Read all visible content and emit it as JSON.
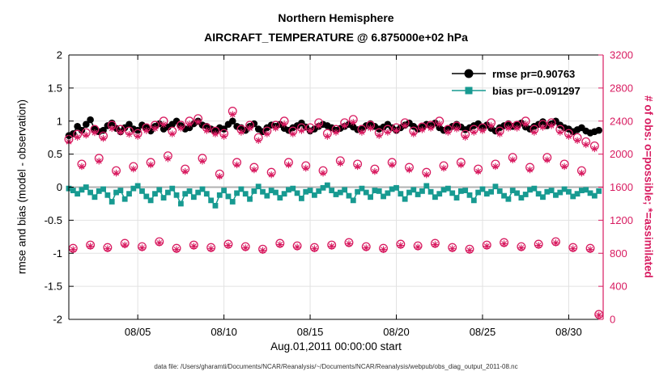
{
  "chart_data": {
    "type": "line",
    "title": "Northern Hemisphere",
    "subtitle": "AIRCRAFT_TEMPERATURE @ 6.875000e+02 hPa",
    "xlabel": "Aug.01,2011 00:00:00 start",
    "ylabel_left": "rmse and bias (model - observation)",
    "ylabel_right": "# of obs: o=possible; *=assimilated",
    "caption": "data file: /Users/gharamti/Documents/NCAR/Reanalysis/~/Documents/NCAR/Reanalysis/webpub/obs_diag_output_2011-08.nc",
    "xlim": [
      1,
      32
    ],
    "ylim_left": [
      -2,
      2
    ],
    "ylim_right": [
      0,
      3200
    ],
    "yticks_left": [
      -2,
      -1.5,
      -1,
      -0.5,
      0,
      0.5,
      1,
      1.5,
      2
    ],
    "yticks_right": [
      0,
      400,
      800,
      1200,
      1600,
      2000,
      2400,
      2800,
      3200
    ],
    "xticks": [
      {
        "v": 5,
        "label": "08/05"
      },
      {
        "v": 10,
        "label": "08/10"
      },
      {
        "v": 15,
        "label": "08/15"
      },
      {
        "v": 20,
        "label": "08/20"
      },
      {
        "v": 25,
        "label": "08/25"
      },
      {
        "v": 30,
        "label": "08/30"
      }
    ],
    "colors": {
      "rmse": "#000000",
      "bias": "#179a91",
      "obs": "#d81b60",
      "grid": "#e2e2e2",
      "zero": "#b0b0b0"
    },
    "x": {
      "start": 1,
      "step": 0.25,
      "count": 124,
      "unit": "day of Aug 2011"
    },
    "legend": [
      {
        "label": "rmse pr=0.90763",
        "color": "#000000",
        "marker": "circle"
      },
      {
        "label": "bias pr=-0.091297",
        "color": "#179a91",
        "marker": "square"
      }
    ],
    "series": [
      {
        "name": "bias",
        "axis": "left",
        "marker": "square",
        "line": true,
        "color": "#179a91",
        "values": [
          -0.02,
          -0.05,
          -0.1,
          -0.04,
          0.0,
          -0.08,
          -0.15,
          -0.06,
          -0.03,
          -0.12,
          -0.22,
          -0.08,
          -0.05,
          -0.18,
          -0.1,
          -0.02,
          0.02,
          -0.06,
          -0.14,
          -0.2,
          -0.1,
          -0.04,
          -0.16,
          -0.08,
          -0.02,
          -0.12,
          -0.25,
          -0.1,
          -0.06,
          -0.15,
          -0.08,
          -0.03,
          -0.1,
          -0.2,
          -0.28,
          -0.12,
          -0.05,
          -0.14,
          -0.22,
          -0.09,
          -0.03,
          -0.1,
          -0.18,
          -0.06,
          0.01,
          -0.07,
          -0.13,
          -0.05,
          -0.08,
          -0.16,
          -0.1,
          -0.04,
          -0.02,
          -0.09,
          -0.17,
          -0.07,
          -0.05,
          -0.12,
          -0.06,
          -0.01,
          0.03,
          -0.05,
          -0.11,
          -0.08,
          -0.04,
          -0.13,
          -0.2,
          -0.07,
          -0.02,
          -0.08,
          -0.15,
          -0.05,
          -0.06,
          -0.14,
          -0.09,
          -0.03,
          -0.01,
          -0.1,
          -0.18,
          -0.08,
          -0.04,
          -0.11,
          -0.06,
          0.02,
          -0.07,
          -0.15,
          -0.1,
          -0.04,
          -0.02,
          -0.09,
          -0.16,
          -0.06,
          -0.05,
          -0.12,
          -0.2,
          -0.08,
          -0.03,
          -0.1,
          -0.07,
          0.01,
          -0.06,
          -0.13,
          -0.18,
          -0.05,
          -0.09,
          -0.16,
          -0.11,
          -0.04,
          -0.02,
          -0.1,
          -0.15,
          -0.07,
          -0.05,
          -0.12,
          -0.08,
          -0.03,
          -0.07,
          -0.14,
          -0.1,
          -0.05,
          -0.04,
          -0.09,
          -0.13,
          -0.06
        ]
      },
      {
        "name": "rmse",
        "axis": "left",
        "marker": "circle",
        "line": true,
        "color": "#000000",
        "values": [
          0.78,
          0.81,
          0.92,
          0.86,
          0.95,
          1.02,
          0.88,
          0.84,
          0.86,
          0.93,
          0.97,
          0.89,
          0.84,
          0.9,
          0.95,
          0.88,
          0.86,
          0.94,
          0.9,
          0.85,
          0.92,
          0.96,
          0.88,
          0.91,
          0.95,
          1.0,
          0.93,
          0.88,
          0.9,
          0.96,
          1.0,
          0.94,
          0.92,
          0.88,
          0.85,
          0.9,
          0.88,
          0.95,
          1.0,
          0.92,
          0.9,
          0.86,
          0.92,
          0.96,
          0.88,
          0.84,
          0.9,
          0.94,
          0.92,
          0.95,
          0.89,
          0.86,
          0.9,
          0.93,
          0.97,
          0.91,
          0.85,
          0.88,
          0.92,
          0.95,
          0.93,
          0.9,
          0.86,
          0.89,
          0.92,
          0.95,
          0.91,
          0.87,
          0.89,
          0.93,
          0.96,
          0.92,
          0.88,
          0.91,
          0.95,
          0.9,
          0.86,
          0.9,
          0.94,
          0.97,
          0.92,
          0.88,
          0.91,
          0.95,
          0.93,
          0.97,
          0.9,
          0.86,
          0.89,
          0.92,
          0.95,
          0.91,
          0.87,
          0.9,
          0.93,
          0.96,
          0.91,
          0.94,
          0.89,
          0.85,
          0.9,
          0.93,
          0.96,
          0.92,
          0.94,
          0.97,
          0.91,
          0.88,
          0.92,
          0.95,
          0.99,
          0.93,
          0.96,
          1.0,
          0.94,
          0.9,
          0.88,
          0.84,
          0.87,
          0.9,
          0.85,
          0.82,
          0.84,
          0.86
        ]
      },
      {
        "name": "obs possible",
        "axis": "right",
        "marker": "ring",
        "line": false,
        "color": "#d81b60",
        "values": [
          2180,
          860,
          2240,
          1880,
          2260,
          900,
          2300,
          1950,
          2220,
          870,
          2350,
          1800,
          2300,
          920,
          2280,
          1850,
          2250,
          880,
          2320,
          1900,
          2350,
          940,
          2400,
          1980,
          2280,
          860,
          2350,
          1820,
          2400,
          900,
          2430,
          1950,
          2320,
          870,
          2280,
          1760,
          2250,
          910,
          2520,
          1900,
          2300,
          880,
          2350,
          1840,
          2200,
          850,
          2280,
          1780,
          2350,
          920,
          2400,
          1900,
          2280,
          890,
          2320,
          1860,
          2320,
          870,
          2380,
          1800,
          2250,
          900,
          2300,
          1920,
          2380,
          930,
          2420,
          1880,
          2300,
          880,
          2350,
          1820,
          2260,
          860,
          2300,
          1900,
          2320,
          910,
          2380,
          1840,
          2280,
          890,
          2330,
          1780,
          2350,
          920,
          2400,
          1860,
          2300,
          870,
          2340,
          1900,
          2240,
          850,
          2300,
          1820,
          2320,
          900,
          2380,
          1880,
          2280,
          930,
          2350,
          1960,
          2350,
          880,
          2400,
          1840,
          2300,
          910,
          2360,
          1960,
          2380,
          940,
          2300,
          1880,
          2250,
          870,
          2200,
          1800,
          2150,
          860,
          2100,
          60
        ]
      },
      {
        "name": "obs assimilated",
        "axis": "right",
        "marker": "star",
        "line": false,
        "color": "#d81b60",
        "values": [
          2150,
          845,
          2205,
          1850,
          2230,
          885,
          2260,
          1915,
          2190,
          855,
          2310,
          1770,
          2265,
          900,
          2240,
          1820,
          2215,
          865,
          2285,
          1870,
          2310,
          925,
          2360,
          1945,
          2245,
          845,
          2315,
          1790,
          2365,
          885,
          2390,
          1915,
          2285,
          855,
          2245,
          1730,
          2215,
          895,
          2480,
          1870,
          2265,
          865,
          2315,
          1810,
          2165,
          835,
          2245,
          1750,
          2315,
          905,
          2365,
          1870,
          2245,
          875,
          2285,
          1830,
          2285,
          855,
          2345,
          1770,
          2215,
          885,
          2265,
          1890,
          2345,
          915,
          2385,
          1850,
          2265,
          865,
          2315,
          1790,
          2225,
          845,
          2265,
          1870,
          2285,
          895,
          2345,
          1810,
          2245,
          875,
          2295,
          1750,
          2315,
          905,
          2365,
          1830,
          2265,
          855,
          2305,
          1870,
          2205,
          835,
          2265,
          1790,
          2285,
          885,
          2345,
          1850,
          2245,
          915,
          2315,
          1930,
          2315,
          865,
          2365,
          1810,
          2265,
          895,
          2325,
          1930,
          2345,
          925,
          2265,
          1850,
          2215,
          855,
          2165,
          1770,
          2115,
          845,
          2065,
          50
        ]
      }
    ]
  }
}
